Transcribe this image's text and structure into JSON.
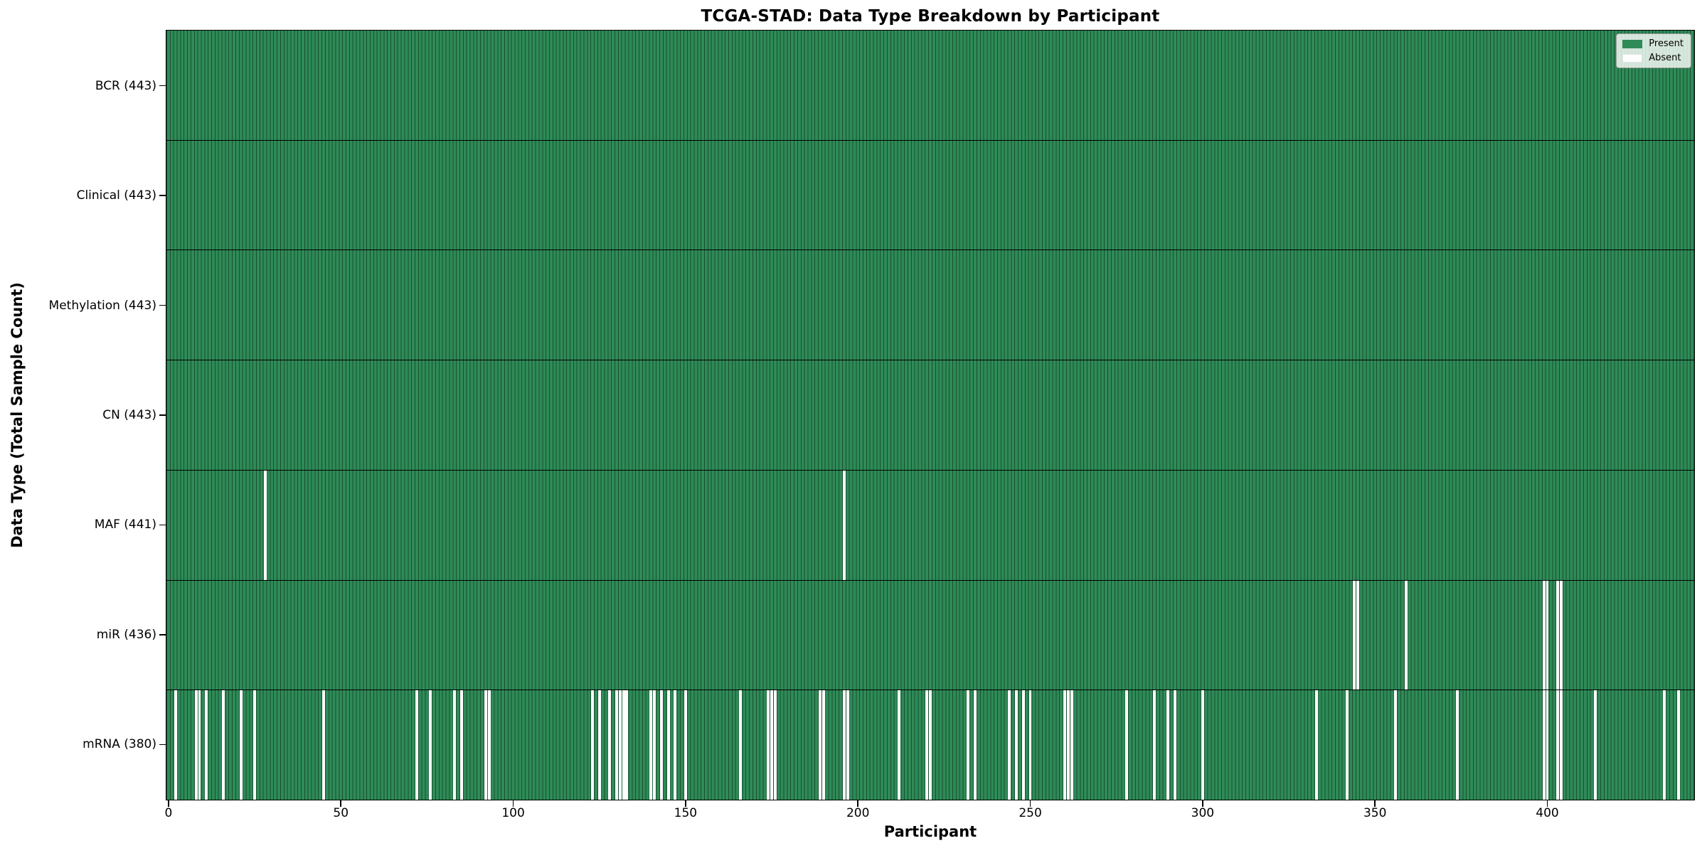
{
  "figure": {
    "title": "TCGA-STAD: Data Type Breakdown by Participant",
    "x_axis_label": "Participant",
    "y_axis_label": "Data Type (Total Sample Count)"
  },
  "legend": {
    "present_label": "Present",
    "absent_label": "Absent"
  },
  "colors": {
    "present_fill": "#2e8b57",
    "bar_edge": "#1a4f31",
    "absent_fill": "#ffffff",
    "row_divider": "#000000",
    "axis_spine": "#000000"
  },
  "chart_data": {
    "type": "heatmap",
    "title": "TCGA-STAD: Data Type Breakdown by Participant",
    "xlabel": "Participant",
    "ylabel": "Data Type (Total Sample Count)",
    "n_participants": 443,
    "x_ticks": [
      0,
      50,
      100,
      150,
      200,
      250,
      300,
      350,
      400
    ],
    "x_range": [
      0,
      443
    ],
    "grid": false,
    "legend_entries": [
      "Present",
      "Absent"
    ],
    "legend_position": "upper right",
    "cell_values": {
      "present": 1,
      "absent": 0
    },
    "rows": [
      {
        "key": "bcr",
        "label": "BCR (443)",
        "data_type": "BCR",
        "present_count": 443,
        "absent_count": 0,
        "absent_participants": []
      },
      {
        "key": "clinical",
        "label": "Clinical (443)",
        "data_type": "Clinical",
        "present_count": 443,
        "absent_count": 0,
        "absent_participants": []
      },
      {
        "key": "methylation",
        "label": "Methylation (443)",
        "data_type": "Methylation",
        "present_count": 443,
        "absent_count": 0,
        "absent_participants": []
      },
      {
        "key": "cn",
        "label": "CN (443)",
        "data_type": "CN",
        "present_count": 443,
        "absent_count": 0,
        "absent_participants": []
      },
      {
        "key": "maf",
        "label": "MAF (441)",
        "data_type": "MAF",
        "present_count": 441,
        "absent_count": 2,
        "absent_participants": [
          28,
          196
        ]
      },
      {
        "key": "mir",
        "label": "miR (436)",
        "data_type": "miR",
        "present_count": 436,
        "absent_count": 7,
        "absent_participants": [
          344,
          345,
          359,
          399,
          400,
          403,
          404
        ]
      },
      {
        "key": "mrna",
        "label": "mRNA (380)",
        "data_type": "mRNA",
        "present_count": 380,
        "absent_count": 63,
        "absent_participants": [
          2,
          8,
          9,
          11,
          16,
          21,
          25,
          45,
          72,
          76,
          83,
          85,
          92,
          93,
          123,
          125,
          128,
          130,
          131,
          132,
          133,
          140,
          141,
          143,
          145,
          147,
          150,
          166,
          174,
          175,
          176,
          189,
          190,
          196,
          197,
          212,
          220,
          221,
          232,
          234,
          244,
          246,
          248,
          250,
          260,
          261,
          262,
          278,
          286,
          290,
          292,
          300,
          333,
          342,
          356,
          374,
          399,
          400,
          403,
          404,
          414,
          434,
          438
        ]
      }
    ]
  }
}
